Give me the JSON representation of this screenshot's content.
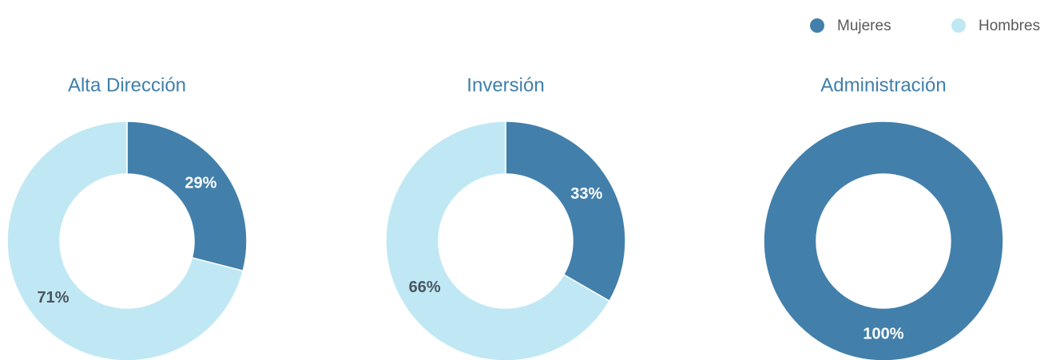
{
  "chart_data": [
    {
      "type": "pie",
      "title": "Alta Dirección",
      "categories": [
        "Mujeres",
        "Hombres"
      ],
      "values": [
        29,
        71
      ],
      "value_labels": [
        "29%",
        "71%"
      ],
      "colors": [
        "#4280ab",
        "#c0e8f4"
      ]
    },
    {
      "type": "pie",
      "title": "Inversión",
      "categories": [
        "Mujeres",
        "Hombres"
      ],
      "values": [
        33,
        66
      ],
      "value_labels": [
        "33%",
        "66%"
      ],
      "colors": [
        "#4280ab",
        "#c0e8f4"
      ]
    },
    {
      "type": "pie",
      "title": "Administración",
      "categories": [
        "Mujeres"
      ],
      "values": [
        100
      ],
      "value_labels": [
        "100%"
      ],
      "colors": [
        "#4280ab"
      ]
    }
  ]
}
